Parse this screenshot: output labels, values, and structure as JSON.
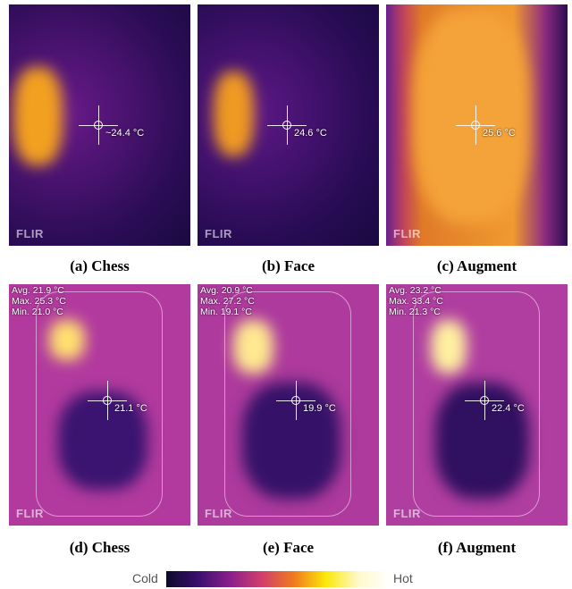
{
  "panels": [
    {
      "caption": "(a) Chess",
      "temp": "~24.4 °C",
      "logo": "FLIR"
    },
    {
      "caption": "(b) Face",
      "temp": "24.6 °C",
      "logo": "FLIR"
    },
    {
      "caption": "(c) Augment",
      "temp": "25.6 °C",
      "logo": "FLIR"
    },
    {
      "caption": "(d) Chess",
      "temp": "21.1 °C",
      "logo": "FLIR",
      "stats": [
        "Avg. 21.9 °C",
        "Max. 25.3 °C",
        "Min. 21.0 °C"
      ]
    },
    {
      "caption": "(e) Face",
      "temp": "19.9 °C",
      "logo": "FLIR",
      "stats": [
        "Avg. 20.9 °C",
        "Max. 27.2 °C",
        "Min. 19.1 °C"
      ]
    },
    {
      "caption": "(f) Augment",
      "temp": "22.4 °C",
      "logo": "FLIR",
      "stats": [
        "Avg. 23.2 °C",
        "Max. 33.4 °C",
        "Min. 21.3 °C"
      ]
    }
  ],
  "colorbar": {
    "low": "Cold",
    "high": "Hot"
  }
}
